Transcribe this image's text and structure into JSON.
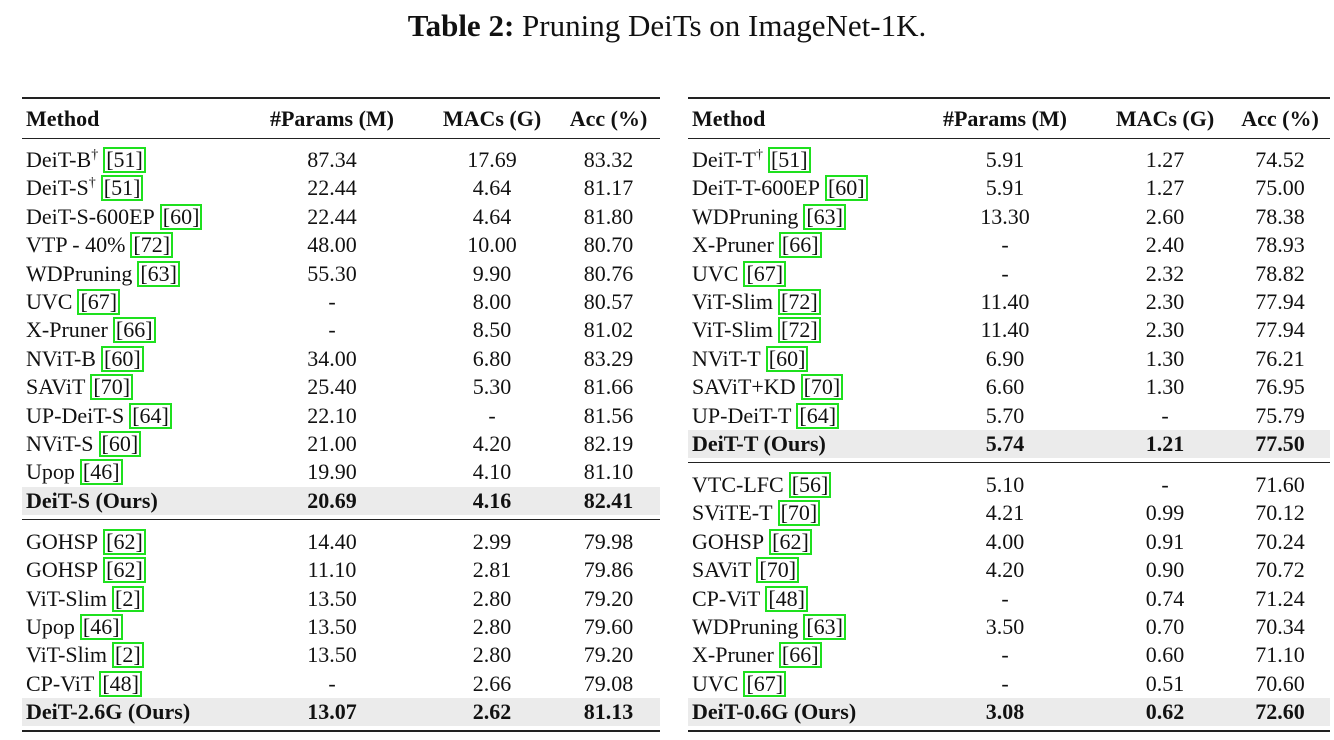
{
  "caption": {
    "label": "Table 2:",
    "text": "Pruning DeiTs on ImageNet-1K."
  },
  "tables": [
    {
      "header": [
        "Method",
        "#Params (M)",
        "MACs (G)",
        "Acc (%)"
      ],
      "groups": [
        {
          "rows": [
            {
              "method": "DeiT-B",
              "sup": "†",
              "cite": "[51]",
              "cells": [
                "87.34",
                "17.69",
                "83.32"
              ]
            },
            {
              "method": "DeiT-S",
              "sup": "†",
              "cite": "[51]",
              "cells": [
                "22.44",
                "4.64",
                "81.17"
              ]
            },
            {
              "method": "DeiT-S-600EP",
              "cite": "[60]",
              "cells": [
                "22.44",
                "4.64",
                "81.80"
              ]
            },
            {
              "method": "VTP - 40%",
              "cite": "[72]",
              "cells": [
                "48.00",
                "10.00",
                "80.70"
              ]
            },
            {
              "method": "WDPruning",
              "cite": "[63]",
              "cells": [
                "55.30",
                "9.90",
                "80.76"
              ]
            },
            {
              "method": "UVC",
              "cite": "[67]",
              "cells": [
                "-",
                "8.00",
                "80.57"
              ]
            },
            {
              "method": "X-Pruner",
              "cite": "[66]",
              "cells": [
                "-",
                "8.50",
                "81.02"
              ]
            },
            {
              "method": "NViT-B",
              "cite": "[60]",
              "cells": [
                "34.00",
                "6.80",
                "83.29"
              ]
            },
            {
              "method": "SAViT",
              "cite": "[70]",
              "cells": [
                "25.40",
                "5.30",
                "81.66"
              ]
            },
            {
              "method": "UP-DeiT-S",
              "cite": "[64]",
              "cells": [
                "22.10",
                "-",
                "81.56"
              ]
            },
            {
              "method": "NViT-S",
              "cite": "[60]",
              "cells": [
                "21.00",
                "4.20",
                "82.19"
              ]
            },
            {
              "method": "Upop",
              "cite": "[46]",
              "cells": [
                "19.90",
                "4.10",
                "81.10"
              ]
            }
          ],
          "ours": {
            "method": "DeiT-S (Ours)",
            "cells": [
              "20.69",
              "4.16",
              "82.41"
            ]
          }
        },
        {
          "rows": [
            {
              "method": "GOHSP",
              "cite": "[62]",
              "cells": [
                "14.40",
                "2.99",
                "79.98"
              ]
            },
            {
              "method": "GOHSP",
              "cite": "[62]",
              "cells": [
                "11.10",
                "2.81",
                "79.86"
              ]
            },
            {
              "method": "ViT-Slim",
              "cite": "[2]",
              "cells": [
                "13.50",
                "2.80",
                "79.20"
              ]
            },
            {
              "method": "Upop",
              "cite": "[46]",
              "cells": [
                "13.50",
                "2.80",
                "79.60"
              ]
            },
            {
              "method": "ViT-Slim",
              "cite": "[2]",
              "cells": [
                "13.50",
                "2.80",
                "79.20"
              ]
            },
            {
              "method": "CP-ViT",
              "cite": "[48]",
              "cells": [
                "-",
                "2.66",
                "79.08"
              ]
            }
          ],
          "ours": {
            "method": "DeiT-2.6G (Ours)",
            "cells": [
              "13.07",
              "2.62",
              "81.13"
            ]
          }
        }
      ]
    },
    {
      "header": [
        "Method",
        "#Params (M)",
        "MACs (G)",
        "Acc (%)"
      ],
      "groups": [
        {
          "rows": [
            {
              "method": "DeiT-T",
              "sup": "†",
              "cite": "[51]",
              "cells": [
                "5.91",
                "1.27",
                "74.52"
              ]
            },
            {
              "method": "DeiT-T-600EP",
              "cite": "[60]",
              "cells": [
                "5.91",
                "1.27",
                "75.00"
              ]
            },
            {
              "method": "WDPruning",
              "cite": "[63]",
              "cells": [
                "13.30",
                "2.60",
                "78.38"
              ]
            },
            {
              "method": "X-Pruner",
              "cite": "[66]",
              "cells": [
                "-",
                "2.40",
                "78.93"
              ]
            },
            {
              "method": "UVC",
              "cite": "[67]",
              "cells": [
                "-",
                "2.32",
                "78.82"
              ]
            },
            {
              "method": "ViT-Slim",
              "cite": "[72]",
              "cells": [
                "11.40",
                "2.30",
                "77.94"
              ]
            },
            {
              "method": "ViT-Slim",
              "cite": "[72]",
              "cells": [
                "11.40",
                "2.30",
                "77.94"
              ]
            },
            {
              "method": "NViT-T",
              "cite": "[60]",
              "cells": [
                "6.90",
                "1.30",
                "76.21"
              ]
            },
            {
              "method": "SAViT+KD",
              "cite": "[70]",
              "cells": [
                "6.60",
                "1.30",
                "76.95"
              ]
            },
            {
              "method": "UP-DeiT-T",
              "cite": "[64]",
              "cells": [
                "5.70",
                "-",
                "75.79"
              ]
            }
          ],
          "ours": {
            "method": "DeiT-T (Ours)",
            "cells": [
              "5.74",
              "1.21",
              "77.50"
            ]
          }
        },
        {
          "rows": [
            {
              "method": "VTC-LFC",
              "cite": "[56]",
              "cells": [
                "5.10",
                "-",
                "71.60"
              ]
            },
            {
              "method": "SViTE-T",
              "cite": "[70]",
              "cells": [
                "4.21",
                "0.99",
                "70.12"
              ]
            },
            {
              "method": "GOHSP",
              "cite": "[62]",
              "cells": [
                "4.00",
                "0.91",
                "70.24"
              ]
            },
            {
              "method": "SAViT",
              "cite": "[70]",
              "cells": [
                "4.20",
                "0.90",
                "70.72"
              ]
            },
            {
              "method": "CP-ViT",
              "cite": "[48]",
              "cells": [
                "-",
                "0.74",
                "71.24"
              ]
            },
            {
              "method": "WDPruning",
              "cite": "[63]",
              "cells": [
                "3.50",
                "0.70",
                "70.34"
              ]
            },
            {
              "method": "X-Pruner",
              "cite": "[66]",
              "cells": [
                "-",
                "0.60",
                "71.10"
              ]
            },
            {
              "method": "UVC",
              "cite": "[67]",
              "cells": [
                "-",
                "0.51",
                "70.60"
              ]
            }
          ],
          "ours": {
            "method": "DeiT-0.6G (Ours)",
            "cells": [
              "3.08",
              "0.62",
              "72.60"
            ]
          }
        }
      ]
    }
  ]
}
